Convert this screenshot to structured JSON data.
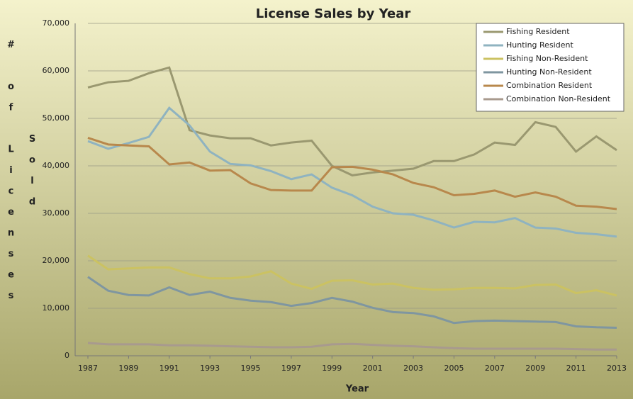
{
  "chart_data": {
    "type": "line",
    "title": "License Sales by Year",
    "xlabel": "Year",
    "ylabel": "# of Licenses Sold",
    "x": [
      1987,
      1988,
      1989,
      1990,
      1991,
      1992,
      1993,
      1994,
      1995,
      1996,
      1997,
      1998,
      1999,
      2000,
      2001,
      2002,
      2003,
      2004,
      2005,
      2006,
      2007,
      2008,
      2009,
      2010,
      2011,
      2012,
      2013
    ],
    "xlim": [
      1987,
      2013
    ],
    "xticks": [
      1987,
      1989,
      1991,
      1993,
      1995,
      1997,
      1999,
      2001,
      2003,
      2005,
      2007,
      2009,
      2011,
      2013
    ],
    "ylim": [
      0,
      70000
    ],
    "yticks": [
      0,
      {
        "value": 10000,
        "label": "10,000"
      },
      {
        "value": 20000,
        "label": "20,000"
      },
      {
        "value": 30000,
        "label": "30,000"
      },
      {
        "value": 40000,
        "label": "40,000"
      },
      {
        "value": 50000,
        "label": "50,000"
      },
      {
        "value": 60000,
        "label": "60,000"
      },
      {
        "value": 70000,
        "label": "70,000"
      }
    ],
    "grid": true,
    "legend": "top-right",
    "series": [
      {
        "name": "Fishing Resident",
        "color": "#9a9870",
        "values": [
          56500,
          57600,
          57900,
          59500,
          60700,
          47500,
          46400,
          45800,
          45800,
          44300,
          44900,
          45300,
          40000,
          38000,
          38600,
          39000,
          39400,
          41000,
          41000,
          42400,
          44900,
          44400,
          49200,
          48200,
          43000,
          46200,
          43300
        ]
      },
      {
        "name": "Hunting Resident",
        "color": "#8fb3c0",
        "values": [
          45200,
          43600,
          44800,
          46100,
          52200,
          48500,
          43000,
          40400,
          40100,
          38900,
          37200,
          38200,
          35400,
          33800,
          31400,
          30000,
          29700,
          28500,
          27000,
          28200,
          28100,
          29000,
          27000,
          26800,
          25900,
          25600,
          25100
        ]
      },
      {
        "name": "Fishing Non-Resident",
        "color": "#cbc262",
        "values": [
          21100,
          18200,
          18400,
          18600,
          18600,
          17200,
          16300,
          16300,
          16700,
          17800,
          15200,
          14100,
          15800,
          15900,
          15000,
          15200,
          14300,
          13900,
          14000,
          14300,
          14300,
          14200,
          14900,
          15000,
          13200,
          13800,
          12700
        ]
      },
      {
        "name": "Hunting Non-Resident",
        "color": "#7f96a0",
        "values": [
          16600,
          13700,
          12800,
          12700,
          14400,
          12800,
          13500,
          12200,
          11600,
          11300,
          10500,
          11100,
          12200,
          11400,
          10100,
          9200,
          9000,
          8300,
          6900,
          7300,
          7400,
          7300,
          7200,
          7100,
          6200,
          6000,
          5900
        ]
      },
      {
        "name": "Combination Resident",
        "color": "#b8884c",
        "values": [
          45900,
          44500,
          44300,
          44100,
          40300,
          40700,
          39000,
          39100,
          36300,
          34900,
          34800,
          34800,
          39700,
          39800,
          39200,
          38200,
          36400,
          35500,
          33800,
          34100,
          34800,
          33500,
          34400,
          33500,
          31600,
          31400,
          30900
        ]
      },
      {
        "name": "Combination Non-Resident",
        "color": "#a89a8e",
        "values": [
          2700,
          2400,
          2400,
          2400,
          2200,
          2200,
          2100,
          2000,
          1900,
          1800,
          1800,
          1900,
          2400,
          2500,
          2300,
          2100,
          2000,
          1800,
          1600,
          1500,
          1500,
          1500,
          1500,
          1500,
          1400,
          1300,
          1300
        ]
      }
    ]
  }
}
